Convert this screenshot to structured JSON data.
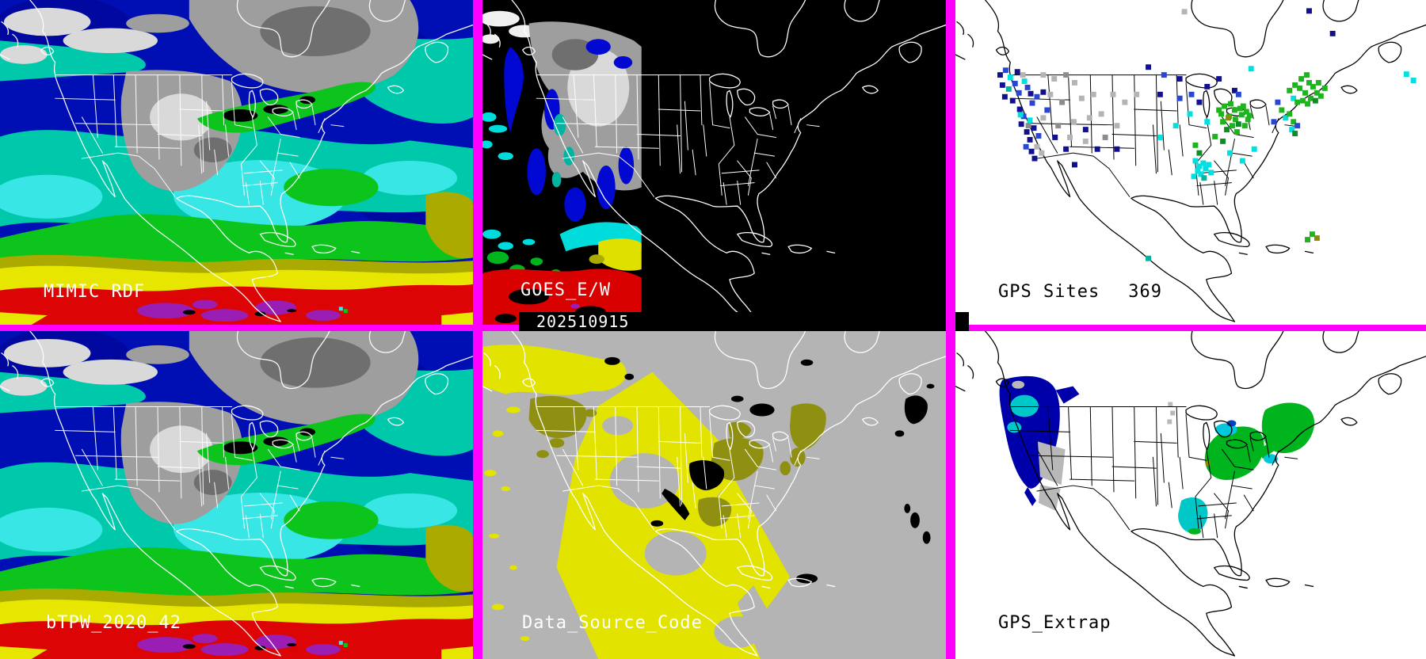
{
  "panels": {
    "mimic_rdf": {
      "label": "MIMIC RDF"
    },
    "goes": {
      "label": "GOES_E/W",
      "timestamp": "202510915"
    },
    "gps_sites": {
      "label": "GPS Sites",
      "count": "369"
    },
    "btpw": {
      "label": "bTPW_2020_42"
    },
    "data_source": {
      "label": "Data_Source_Code"
    },
    "gps_extrap": {
      "label": "GPS_Extrap"
    }
  },
  "palette": {
    "frame": {
      "border": "#ff00ff",
      "timestamp_bar": "#000000"
    },
    "map_lines": {
      "light": "#ffffff",
      "dark": "#000000"
    },
    "tpw": {
      "bg": "#000fb4",
      "deep": "#0008a0",
      "teal": "#00c8aa",
      "cyan": "#38e6e6",
      "green": "#0cc41c",
      "olive": "#aaaa00",
      "yellow": "#e6e600",
      "red": "#dc0404",
      "purple": "#9a1eb4"
    },
    "clouds": {
      "gray": "#9e9e9e",
      "light": "#d9d9d9",
      "dark": "#6f6f6f"
    },
    "goes": {
      "background": "#000000",
      "blue": "#0008d2",
      "cyan": "#00dcdc",
      "teal": "#00b4a0",
      "green": "#00b41e",
      "yellow": "#e0e000",
      "red": "#d90000"
    },
    "data_source": {
      "background": "#b4b4b4",
      "yellow": "#e3e300",
      "olive": "#8f8f12",
      "no_data": "#000000"
    },
    "gps": {
      "background": "#ffffff",
      "outline": "#000000",
      "dot_colors": {
        "n": "#101090",
        "b": "#2846d2",
        "c": "#00e0e0",
        "t": "#00b4a0",
        "g": "#1eb41e",
        "G": "#0f8c28",
        "y": "#b4b4b4",
        "d": "#8c8c8c",
        "o": "#8c8c00"
      }
    },
    "extrap": {
      "navy": "#0000aa",
      "cyan": "#00c8c8",
      "gray": "#b8b8b8",
      "green": "#00b41e",
      "lake": "#00c8dc",
      "olive": "#8c8c00"
    }
  },
  "gps_sites_dots": [
    [
      57,
      96,
      "n"
    ],
    [
      64,
      90,
      "b"
    ],
    [
      70,
      99,
      "c"
    ],
    [
      60,
      109,
      "n"
    ],
    [
      68,
      114,
      "t"
    ],
    [
      76,
      107,
      "b"
    ],
    [
      63,
      124,
      "n"
    ],
    [
      73,
      129,
      "n"
    ],
    [
      81,
      119,
      "b"
    ],
    [
      86,
      96,
      "y"
    ],
    [
      92,
      112,
      "b"
    ],
    [
      79,
      92,
      "n"
    ],
    [
      88,
      104,
      "c"
    ],
    [
      96,
      120,
      "n"
    ],
    [
      104,
      124,
      "b"
    ],
    [
      112,
      118,
      "n"
    ],
    [
      98,
      132,
      "b"
    ],
    [
      82,
      140,
      "n"
    ],
    [
      87,
      149,
      "b"
    ],
    [
      84,
      159,
      "n"
    ],
    [
      91,
      169,
      "n"
    ],
    [
      95,
      179,
      "n"
    ],
    [
      90,
      188,
      "b"
    ],
    [
      97,
      194,
      "n"
    ],
    [
      101,
      203,
      "n"
    ],
    [
      95,
      154,
      "c"
    ],
    [
      83,
      147,
      "c"
    ],
    [
      100,
      164,
      "n"
    ],
    [
      106,
      174,
      "b"
    ],
    [
      104,
      188,
      "y"
    ],
    [
      110,
      196,
      "y"
    ],
    [
      93,
      161,
      "d"
    ],
    [
      112,
      96,
      "y"
    ],
    [
      126,
      101,
      "y"
    ],
    [
      141,
      96,
      "d"
    ],
    [
      152,
      106,
      "y"
    ],
    [
      121,
      121,
      "y"
    ],
    [
      136,
      131,
      "d"
    ],
    [
      161,
      126,
      "y"
    ],
    [
      176,
      121,
      "y"
    ],
    [
      112,
      151,
      "y"
    ],
    [
      131,
      161,
      "d"
    ],
    [
      151,
      156,
      "y"
    ],
    [
      171,
      151,
      "y"
    ],
    [
      186,
      146,
      "y"
    ],
    [
      201,
      121,
      "y"
    ],
    [
      146,
      176,
      "y"
    ],
    [
      166,
      181,
      "y"
    ],
    [
      191,
      176,
      "d"
    ],
    [
      206,
      161,
      "y"
    ],
    [
      216,
      131,
      "y"
    ],
    [
      231,
      121,
      "y"
    ],
    [
      292,
      15,
      "y"
    ],
    [
      117,
      141,
      "b"
    ],
    [
      127,
      176,
      "n"
    ],
    [
      141,
      191,
      "n"
    ],
    [
      152,
      211,
      "n"
    ],
    [
      166,
      166,
      "n"
    ],
    [
      181,
      191,
      "n"
    ],
    [
      206,
      191,
      "n"
    ],
    [
      246,
      86,
      "n"
    ],
    [
      266,
      96,
      "b"
    ],
    [
      286,
      101,
      "n"
    ],
    [
      301,
      121,
      "b"
    ],
    [
      311,
      131,
      "n"
    ],
    [
      286,
      126,
      "b"
    ],
    [
      321,
      111,
      "n"
    ],
    [
      336,
      101,
      "n"
    ],
    [
      261,
      121,
      "n"
    ],
    [
      356,
      116,
      "n"
    ],
    [
      361,
      121,
      "b"
    ],
    [
      481,
      43,
      "n"
    ],
    [
      451,
      14,
      "n"
    ],
    [
      299,
      146,
      "c"
    ],
    [
      281,
      161,
      "c"
    ],
    [
      321,
      156,
      "c"
    ],
    [
      261,
      176,
      "c"
    ],
    [
      377,
      88,
      "c"
    ],
    [
      575,
      95,
      "c"
    ],
    [
      584,
      103,
      "c"
    ],
    [
      350,
      196,
      "c"
    ],
    [
      366,
      206,
      "c"
    ],
    [
      381,
      191,
      "c"
    ],
    [
      336,
      141,
      "g"
    ],
    [
      343,
      136,
      "g"
    ],
    [
      351,
      133,
      "g"
    ],
    [
      356,
      141,
      "g"
    ],
    [
      363,
      139,
      "g"
    ],
    [
      349,
      149,
      "g"
    ],
    [
      357,
      153,
      "g"
    ],
    [
      365,
      147,
      "g"
    ],
    [
      371,
      143,
      "g"
    ],
    [
      373,
      153,
      "g"
    ],
    [
      341,
      156,
      "g"
    ],
    [
      353,
      161,
      "g"
    ],
    [
      361,
      159,
      "G"
    ],
    [
      369,
      161,
      "g"
    ],
    [
      346,
      166,
      "G"
    ],
    [
      359,
      169,
      "g"
    ],
    [
      348,
      151,
      "o"
    ],
    [
      339,
      146,
      "g"
    ],
    [
      367,
      136,
      "g"
    ],
    [
      375,
      148,
      "g"
    ],
    [
      331,
      175,
      "g"
    ],
    [
      341,
      181,
      "G"
    ],
    [
      306,
      186,
      "g"
    ],
    [
      311,
      196,
      "G"
    ],
    [
      426,
      116,
      "g"
    ],
    [
      433,
      109,
      "g"
    ],
    [
      441,
      101,
      "g"
    ],
    [
      448,
      96,
      "g"
    ],
    [
      451,
      106,
      "g"
    ],
    [
      439,
      113,
      "g"
    ],
    [
      446,
      119,
      "g"
    ],
    [
      456,
      111,
      "g"
    ],
    [
      461,
      119,
      "g"
    ],
    [
      453,
      126,
      "g"
    ],
    [
      431,
      126,
      "c"
    ],
    [
      436,
      131,
      "g"
    ],
    [
      443,
      129,
      "g"
    ],
    [
      449,
      133,
      "g"
    ],
    [
      459,
      129,
      "G"
    ],
    [
      466,
      123,
      "g"
    ],
    [
      471,
      113,
      "g"
    ],
    [
      463,
      106,
      "g"
    ],
    [
      411,
      131,
      "b"
    ],
    [
      416,
      141,
      "g"
    ],
    [
      421,
      151,
      "c"
    ],
    [
      406,
      156,
      "b"
    ],
    [
      426,
      146,
      "g"
    ],
    [
      431,
      156,
      "g"
    ],
    [
      436,
      161,
      "b"
    ],
    [
      429,
      166,
      "c"
    ],
    [
      433,
      171,
      "G"
    ],
    [
      306,
      206,
      "c"
    ],
    [
      311,
      213,
      "c"
    ],
    [
      316,
      209,
      "c"
    ],
    [
      309,
      219,
      "c"
    ],
    [
      313,
      223,
      "c"
    ],
    [
      319,
      216,
      "c"
    ],
    [
      323,
      211,
      "c"
    ],
    [
      304,
      226,
      "c"
    ],
    [
      317,
      228,
      "t"
    ],
    [
      326,
      221,
      "c"
    ],
    [
      455,
      300,
      "g"
    ],
    [
      461,
      305,
      "o"
    ],
    [
      449,
      307,
      "g"
    ],
    [
      246,
      331,
      "t"
    ]
  ]
}
